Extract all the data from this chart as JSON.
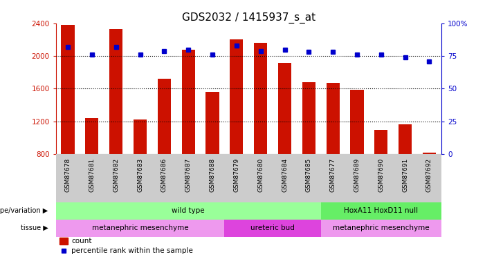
{
  "title": "GDS2032 / 1415937_s_at",
  "samples": [
    "GSM87678",
    "GSM87681",
    "GSM87682",
    "GSM87683",
    "GSM87686",
    "GSM87687",
    "GSM87688",
    "GSM87679",
    "GSM87680",
    "GSM87684",
    "GSM87685",
    "GSM87677",
    "GSM87689",
    "GSM87690",
    "GSM87691",
    "GSM87692"
  ],
  "counts": [
    2380,
    1240,
    2330,
    1220,
    1720,
    2080,
    1560,
    2200,
    2160,
    1920,
    1680,
    1670,
    1590,
    1100,
    1160,
    820
  ],
  "percentile": [
    82,
    76,
    82,
    76,
    79,
    80,
    76,
    83,
    79,
    80,
    78,
    78,
    76,
    76,
    74,
    71
  ],
  "ymin": 800,
  "ymax": 2400,
  "yticks": [
    800,
    1200,
    1600,
    2000,
    2400
  ],
  "right_yticks": [
    0,
    25,
    50,
    75,
    100
  ],
  "bar_color": "#cc1100",
  "dot_color": "#0000cc",
  "title_fontsize": 11,
  "axis_color_left": "#cc1100",
  "axis_color_right": "#0000cc",
  "genotype_groups": [
    {
      "label": "wild type",
      "start": 0,
      "end": 11,
      "color": "#99ff99"
    },
    {
      "label": "HoxA11 HoxD11 null",
      "start": 11,
      "end": 16,
      "color": "#66ee66"
    }
  ],
  "tissue_groups": [
    {
      "label": "metanephric mesenchyme",
      "start": 0,
      "end": 7,
      "color": "#ee99ee"
    },
    {
      "label": "ureteric bud",
      "start": 7,
      "end": 11,
      "color": "#dd44dd"
    },
    {
      "label": "metanephric mesenchyme",
      "start": 11,
      "end": 16,
      "color": "#ee99ee"
    }
  ],
  "legend_count_color": "#cc1100",
  "legend_dot_color": "#0000cc",
  "background_color": "#ffffff",
  "sample_bg_color": "#cccccc"
}
